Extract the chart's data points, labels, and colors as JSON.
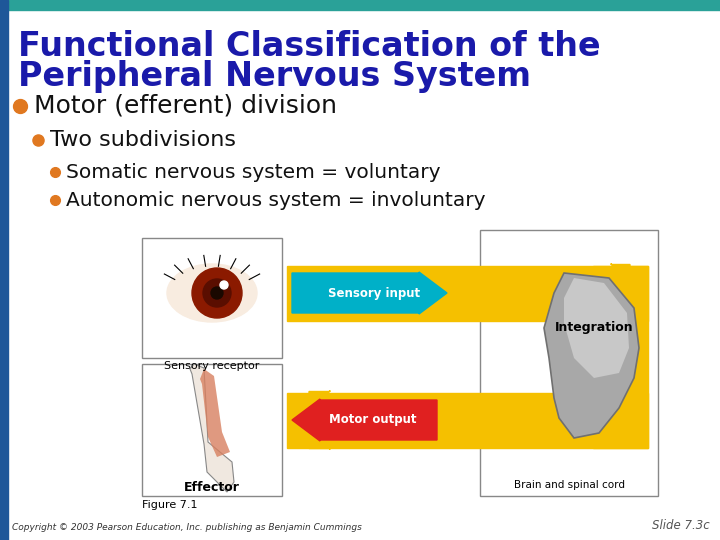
{
  "bg_color": "#ffffff",
  "top_bar_color": "#2aa198",
  "left_bar_color": "#1e5799",
  "title_line1": "Functional Classification of the",
  "title_line2": "Peripheral Nervous System",
  "title_color": "#1a1aaa",
  "bullet1": "Motor (efferent) division",
  "bullet1_dot_color": "#e07820",
  "bullet2": "Two subdivisions",
  "bullet2_dot_color": "#e07820",
  "bullet3a": "Somatic nervous system = voluntary",
  "bullet3b": "Autonomic nervous system = involuntary",
  "bullet3_dot_color": "#e07820",
  "text_color": "#111111",
  "fig_caption": "Figure 7.1",
  "effector_label": "Effector",
  "sensory_receptor_label": "Sensory receptor",
  "integration_label": "Integration",
  "brain_label": "Brain and spinal cord",
  "sensory_input_label": "Sensory input",
  "motor_output_label": "Motor output",
  "copyright_text": "Copyright © 2003 Pearson Education, Inc. publishing as Benjamin Cummings",
  "slide_label": "Slide 7.3c",
  "yellow": "#f5c000",
  "cyan": "#00b0c8",
  "red_arrow": "#e02020"
}
